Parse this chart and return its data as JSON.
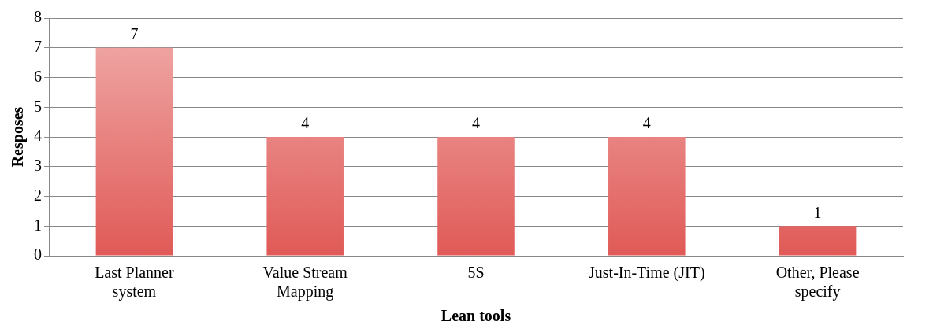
{
  "chart_data": {
    "type": "bar",
    "xlabel": "Lean tools",
    "ylabel": "Resposes",
    "categories": [
      "Last Planner system",
      "Value Stream Mapping",
      "5S",
      "Just-In-Time (JIT)",
      "Other, Please specify"
    ],
    "values": [
      7,
      4,
      4,
      4,
      1
    ],
    "color": "#e05a57",
    "ylim": [
      0,
      8
    ],
    "yticks": [
      0,
      1,
      2,
      3,
      4,
      5,
      6,
      7,
      8
    ],
    "grid": "y",
    "data_labels": true,
    "legend": false
  }
}
